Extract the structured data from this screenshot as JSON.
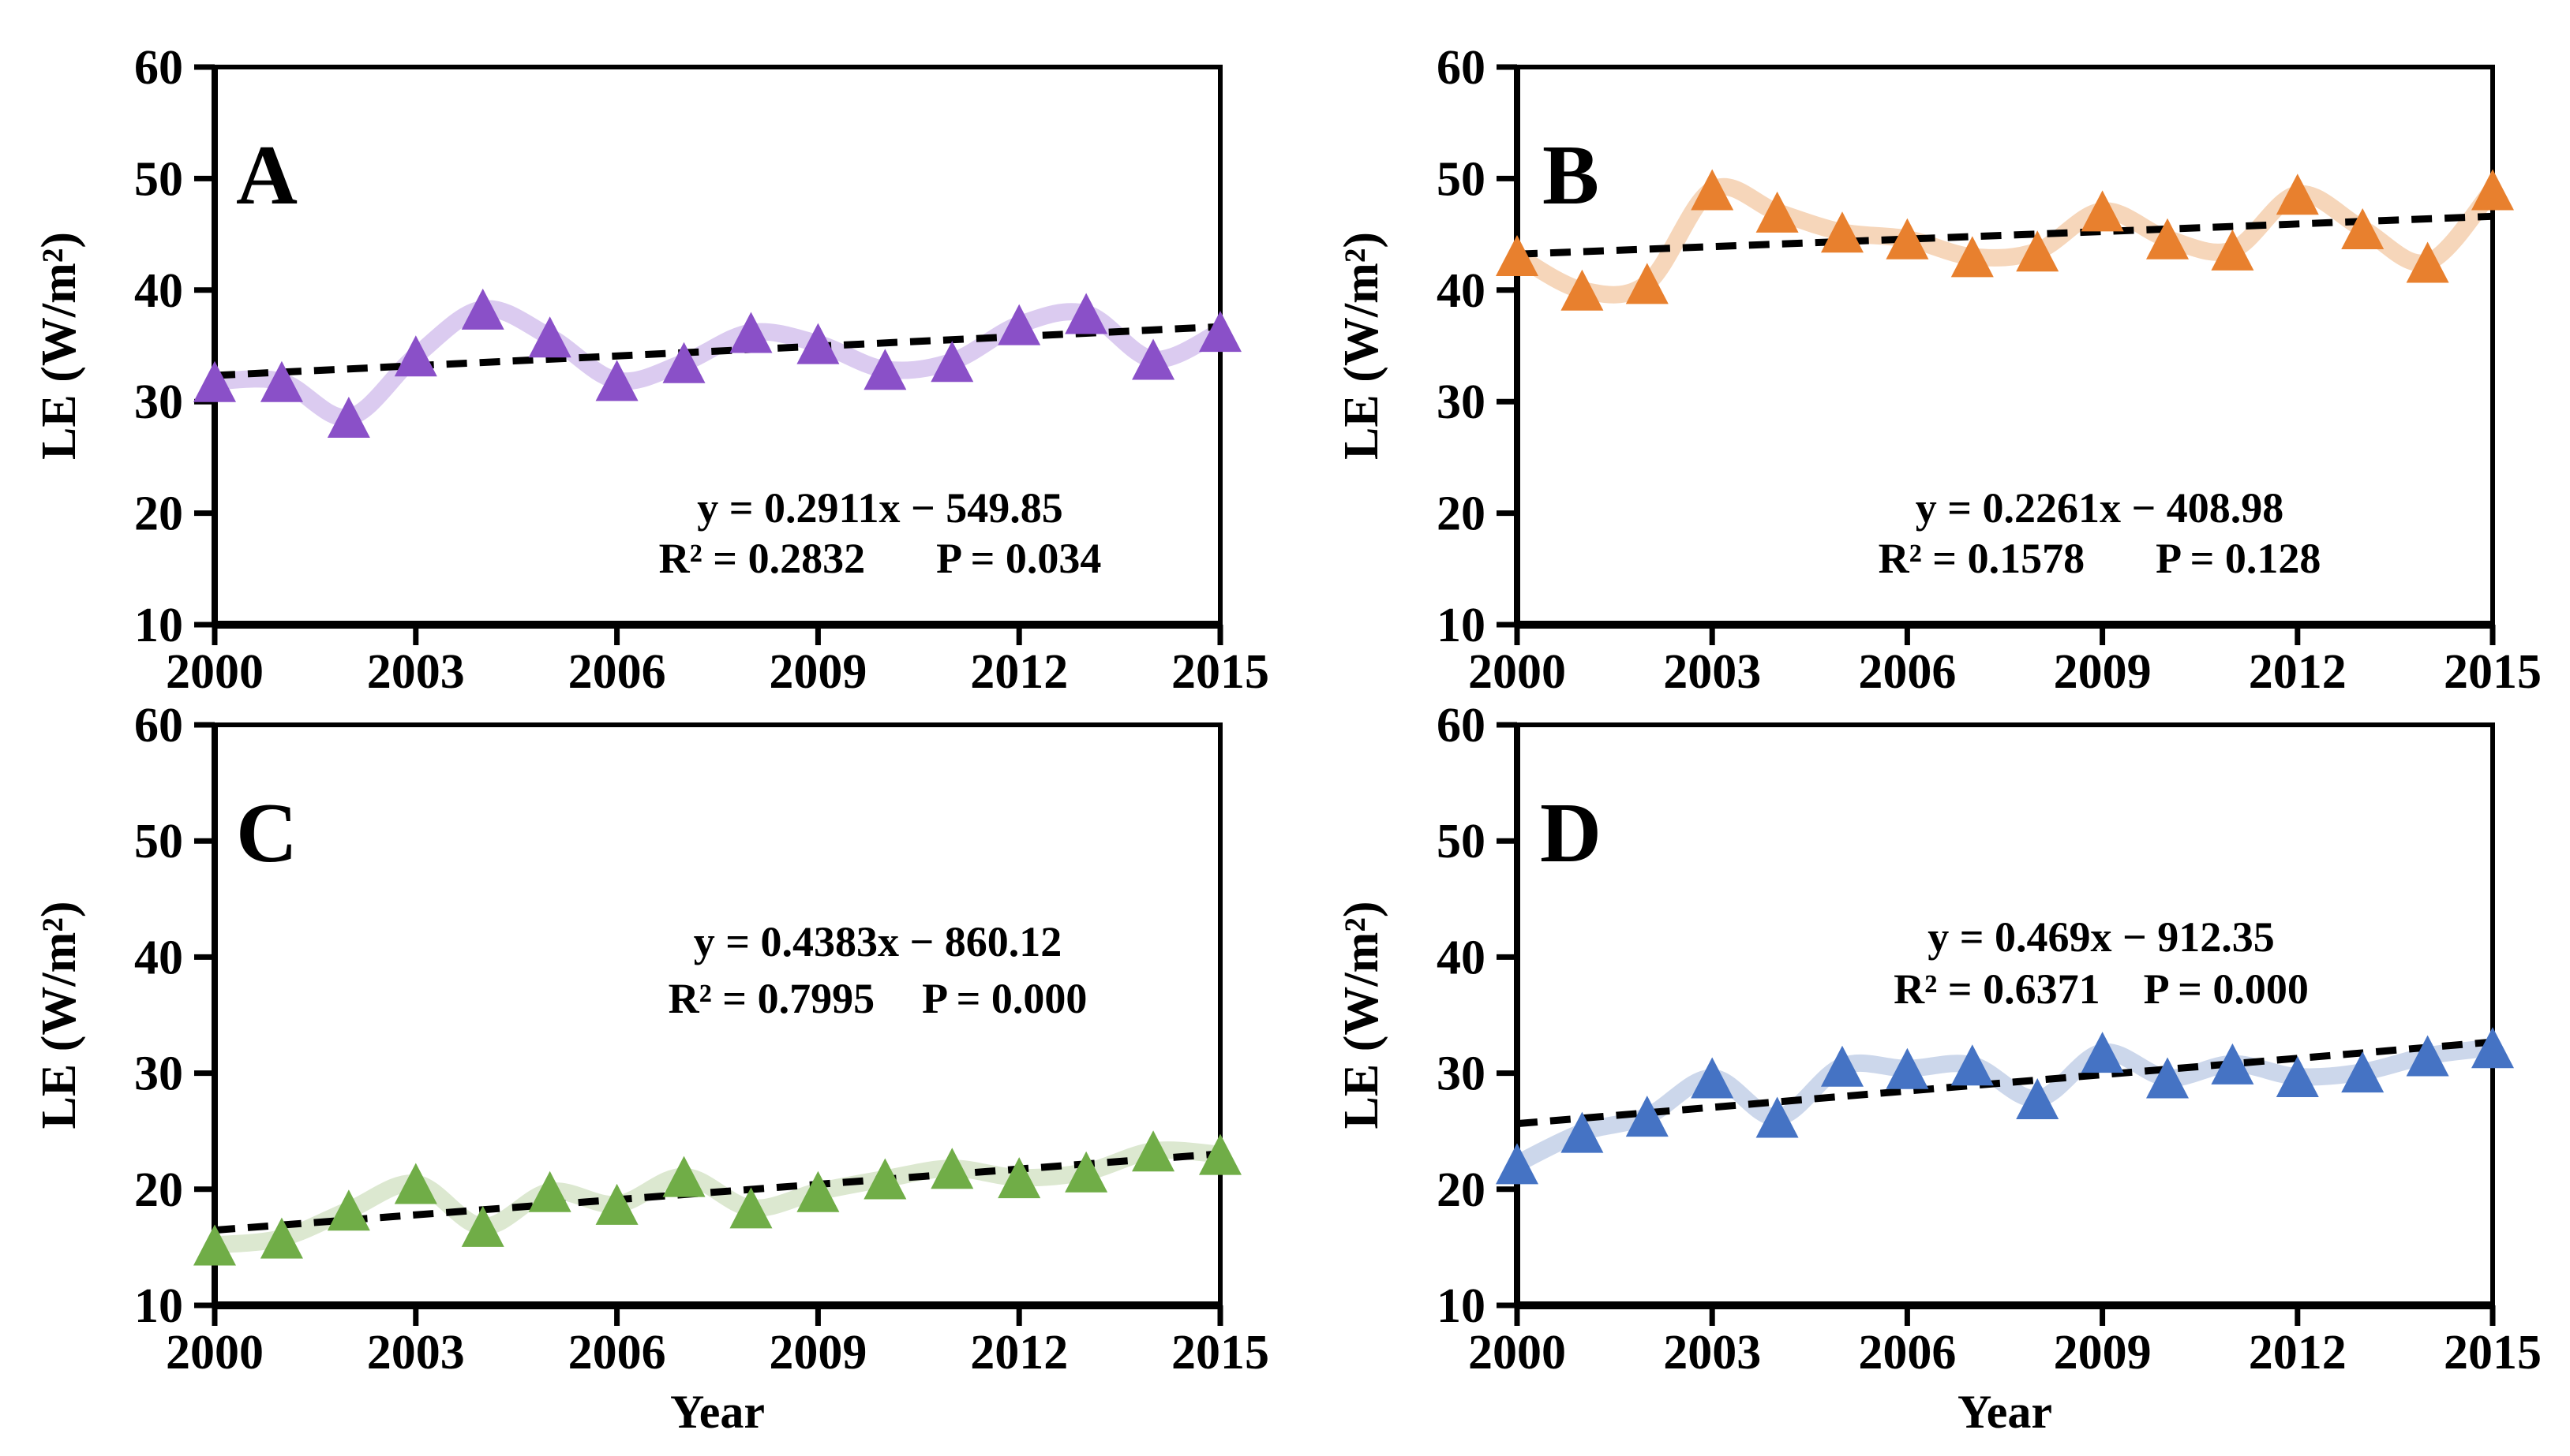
{
  "figure": {
    "background": "#ffffff",
    "y_axis_title": "LE (W/m²)",
    "x_axis_title": "Year",
    "trend_color": "#000000"
  },
  "chart_data": [
    {
      "type": "line",
      "panel_label": "A",
      "x": [
        2000,
        2001,
        2002,
        2003,
        2004,
        2005,
        2006,
        2007,
        2008,
        2009,
        2010,
        2011,
        2012,
        2013,
        2014,
        2015
      ],
      "values": [
        31.8,
        31.8,
        28.6,
        34.1,
        38.3,
        35.8,
        31.9,
        33.5,
        36.2,
        35.2,
        32.9,
        33.6,
        36.9,
        37.9,
        33.8,
        36.3
      ],
      "ylabel": "LE (W/m²)",
      "xlabel": "",
      "ylim": [
        10,
        60
      ],
      "xlim": [
        2000,
        2015
      ],
      "yticks": [
        10,
        20,
        30,
        40,
        50,
        60
      ],
      "xticks": [
        2000,
        2003,
        2006,
        2009,
        2012,
        2015
      ],
      "grid": false,
      "marker": "triangle-up",
      "marker_color": "#8a50c8",
      "line_color": "#dbcbf0",
      "trend": {
        "slope": 0.2911,
        "intercept": -549.85,
        "equation": "y = 0.2911x − 549.85",
        "r2": "R² = 0.2832",
        "p": "P = 0.034",
        "style": "dashed",
        "color": "#000000"
      }
    },
    {
      "type": "line",
      "panel_label": "B",
      "x": [
        2000,
        2001,
        2002,
        2003,
        2004,
        2005,
        2006,
        2007,
        2008,
        2009,
        2010,
        2011,
        2012,
        2013,
        2014,
        2015
      ],
      "values": [
        43.1,
        40.0,
        40.6,
        49.0,
        47.0,
        45.2,
        44.6,
        43.0,
        43.5,
        47.1,
        44.6,
        43.6,
        48.6,
        45.5,
        42.5,
        49.0
      ],
      "ylabel": "LE (W/m²)",
      "xlabel": "",
      "ylim": [
        10,
        60
      ],
      "xlim": [
        2000,
        2015
      ],
      "yticks": [
        10,
        20,
        30,
        40,
        50,
        60
      ],
      "xticks": [
        2000,
        2003,
        2006,
        2009,
        2012,
        2015
      ],
      "grid": false,
      "marker": "triangle-up",
      "marker_color": "#e8802e",
      "line_color": "#f6d6ba",
      "trend": {
        "slope": 0.2261,
        "intercept": -408.98,
        "equation": "y = 0.2261x − 408.98",
        "r2": "R² = 0.1578",
        "p": "P = 0.128",
        "style": "dashed",
        "color": "#000000"
      }
    },
    {
      "type": "line",
      "panel_label": "C",
      "x": [
        2000,
        2001,
        2002,
        2003,
        2004,
        2005,
        2006,
        2007,
        2008,
        2009,
        2010,
        2011,
        2012,
        2013,
        2014,
        2015
      ],
      "values": [
        15.2,
        15.8,
        18.2,
        20.5,
        16.8,
        19.8,
        18.7,
        21.1,
        18.4,
        19.8,
        20.9,
        21.8,
        21.0,
        21.5,
        23.3,
        23.0
      ],
      "ylabel": "LE (W/m²)",
      "xlabel": "Year",
      "ylim": [
        10,
        60
      ],
      "xlim": [
        2000,
        2015
      ],
      "yticks": [
        10,
        20,
        30,
        40,
        50,
        60
      ],
      "xticks": [
        2000,
        2003,
        2006,
        2009,
        2012,
        2015
      ],
      "grid": false,
      "marker": "triangle-up",
      "marker_color": "#70ad47",
      "line_color": "#dce8d0",
      "trend": {
        "slope": 0.4383,
        "intercept": -860.12,
        "equation": "y = 0.4383x − 860.12",
        "r2": "R² = 0.7995",
        "p": "P = 0.000",
        "style": "dashed",
        "color": "#000000"
      }
    },
    {
      "type": "line",
      "panel_label": "D",
      "x": [
        2000,
        2001,
        2002,
        2003,
        2004,
        2005,
        2006,
        2007,
        2008,
        2009,
        2010,
        2011,
        2012,
        2013,
        2014,
        2015
      ],
      "values": [
        22.2,
        24.9,
        26.3,
        29.6,
        26.2,
        30.6,
        30.4,
        30.7,
        27.8,
        31.8,
        29.6,
        30.8,
        29.7,
        30.1,
        31.5,
        32.2
      ],
      "ylabel": "LE (W/m²)",
      "xlabel": "Year",
      "ylim": [
        10,
        60
      ],
      "xlim": [
        2000,
        2015
      ],
      "yticks": [
        10,
        20,
        30,
        40,
        50,
        60
      ],
      "xticks": [
        2000,
        2003,
        2006,
        2009,
        2012,
        2015
      ],
      "grid": false,
      "marker": "triangle-up",
      "marker_color": "#4573c4",
      "line_color": "#ccd7eb",
      "trend": {
        "slope": 0.469,
        "intercept": -912.35,
        "equation": "y = 0.469x − 912.35",
        "r2": "R² = 0.6371",
        "p": "P = 0.000",
        "style": "dashed",
        "color": "#000000"
      }
    }
  ]
}
